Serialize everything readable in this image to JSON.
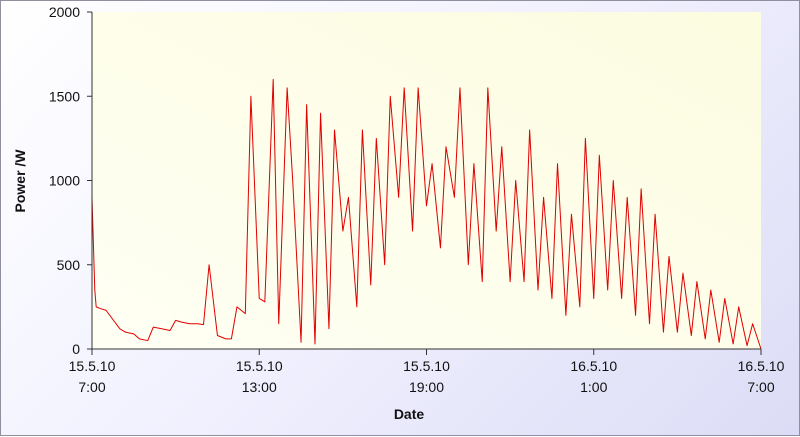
{
  "chart_data": {
    "type": "line",
    "title": "",
    "xlabel": "Date",
    "ylabel": "Power /W",
    "ylim": [
      0,
      2000
    ],
    "y_ticks": [
      "0",
      "500",
      "1000",
      "1500",
      "2000"
    ],
    "x_ticks": [
      {
        "date": "15.5.10",
        "time": "7:00"
      },
      {
        "date": "15.5.10",
        "time": "13:00"
      },
      {
        "date": "15.5.10",
        "time": "19:00"
      },
      {
        "date": "16.5.10",
        "time": "1:00"
      },
      {
        "date": "16.5.10",
        "time": "7:00"
      }
    ],
    "x_range": [
      "15.5.10 7:00",
      "16.5.10 7:00"
    ],
    "grid": false,
    "legend": "none",
    "colors": {
      "line": "#e00000",
      "plot_bg_top_right": "#fcfce0",
      "plot_bg_bottom_left": "#fffff4"
    },
    "series": [
      {
        "x_hours": [
          0,
          0.1,
          0.15,
          0.3,
          0.5,
          1.0,
          1.2,
          1.5,
          1.7,
          2.0,
          2.2,
          2.5,
          2.8,
          3.0,
          3.2,
          3.5,
          3.8,
          4.0,
          4.2,
          4.5,
          4.8,
          5.0,
          5.2,
          5.5,
          5.7,
          6.0,
          6.2,
          6.5,
          6.7,
          7.0,
          7.2,
          7.5,
          7.7,
          8.0,
          8.2,
          8.5,
          8.7,
          9.0,
          9.2,
          9.5,
          9.7,
          10.0,
          10.2,
          10.5,
          10.7,
          11.0,
          11.2,
          11.5,
          11.7,
          12.0,
          12.2,
          12.5,
          12.7,
          13.0,
          13.2,
          13.5,
          13.7,
          14.0,
          14.2,
          14.5,
          14.7,
          15.0,
          15.2,
          15.5,
          15.7,
          16.0,
          16.2,
          16.5,
          16.7,
          17.0,
          17.2,
          17.5,
          17.7,
          18.0,
          18.2,
          18.5,
          18.7,
          19.0,
          19.2,
          19.5,
          19.7,
          20.0,
          20.2,
          20.5,
          20.7,
          21.0,
          21.2,
          21.5,
          21.7,
          22.0,
          22.2,
          22.5,
          22.7,
          23.0,
          23.2,
          23.5,
          23.7,
          24.0
        ],
        "values": [
          900,
          350,
          250,
          240,
          230,
          120,
          100,
          90,
          60,
          50,
          130,
          120,
          110,
          170,
          160,
          150,
          150,
          145,
          500,
          80,
          60,
          60,
          250,
          210,
          1500,
          300,
          280,
          1600,
          150,
          1550,
          1000,
          40,
          1450,
          30,
          1400,
          120,
          1300,
          700,
          900,
          250,
          1300,
          380,
          1250,
          500,
          1500,
          900,
          1550,
          700,
          1550,
          850,
          1100,
          600,
          1200,
          900,
          1550,
          500,
          1100,
          400,
          1550,
          700,
          1200,
          400,
          1000,
          400,
          1300,
          350,
          900,
          300,
          1100,
          200,
          800,
          250,
          1250,
          300,
          1150,
          350,
          1000,
          300,
          900,
          200,
          950,
          150,
          800,
          100,
          550,
          100,
          450,
          80,
          400,
          60,
          350,
          40,
          300,
          30,
          250,
          20,
          150,
          0
        ]
      }
    ]
  }
}
